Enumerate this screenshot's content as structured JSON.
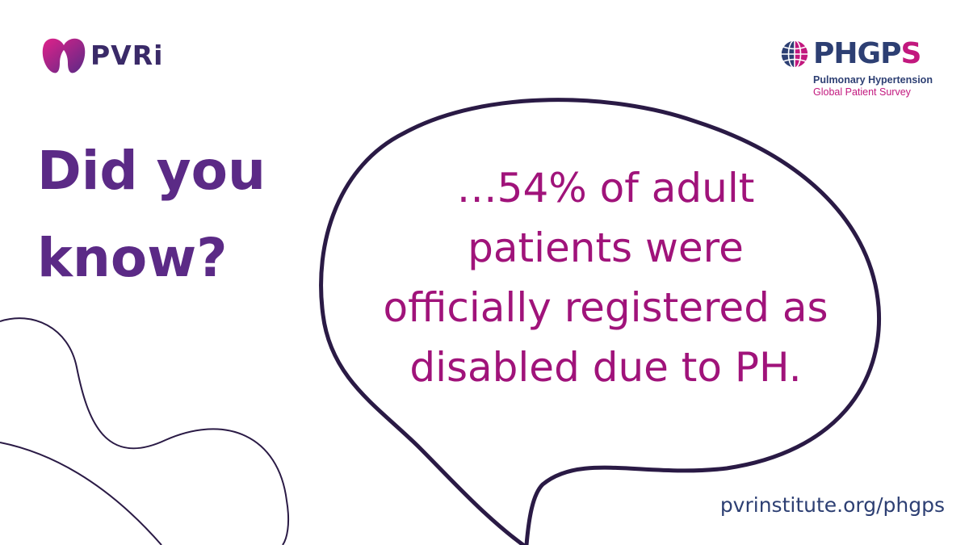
{
  "logos": {
    "pvri": {
      "text": "PVRi",
      "icon": "pvri-lungs-heart-icon"
    },
    "phgps": {
      "wordmark_main": "PHGP",
      "wordmark_s": "S",
      "subtitle_line1": "Pulmonary Hypertension",
      "subtitle_line2": "Global Patient Survey",
      "icon": "globe-icon"
    }
  },
  "headline": {
    "line1": "Did you",
    "line2": "know?"
  },
  "bubble": {
    "lines": [
      "…54% of adult",
      "patients were",
      "officially registered as",
      "disabled due to PH."
    ]
  },
  "footer": {
    "url": "pvrinstitute.org/phgps"
  },
  "colors": {
    "purple": "#5b2a86",
    "magenta": "#a0137a",
    "navy": "#2d3f73",
    "pink": "#c2187e",
    "outline": "#2a1a45"
  }
}
